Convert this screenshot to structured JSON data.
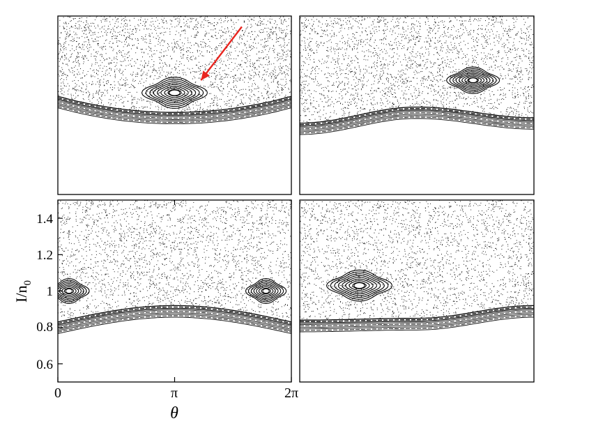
{
  "figure": {
    "marker_color": "#000000",
    "arrow_color": "#e8251f",
    "background": "#ffffff"
  },
  "chart_data": [
    {
      "panel": "top-left",
      "type": "scatter",
      "title": "",
      "xlim": [
        0,
        6.2832
      ],
      "ylim": [
        0.5,
        1.5
      ],
      "features": {
        "island_center": {
          "x": 3.1416,
          "y": 1.07
        },
        "island_size": "large",
        "lower_boundary_shape": "bowl",
        "lower_boundary_y_edges": 1.05,
        "lower_boundary_y_center": 0.96
      },
      "annotations": [
        {
          "type": "arrow",
          "color": "red",
          "from": {
            "x": 4.95,
            "y": 1.44
          },
          "to": {
            "x": 3.85,
            "y": 1.14
          }
        }
      ]
    },
    {
      "panel": "top-right",
      "type": "scatter",
      "title": "",
      "xlim": [
        0,
        6.2832
      ],
      "ylim": [
        0.5,
        1.5
      ],
      "features": {
        "island_center": {
          "x": 4.65,
          "y": 1.14
        },
        "island_size": "medium",
        "lower_boundary_shape": "wave",
        "lower_boundary_y_left": 0.9,
        "lower_boundary_y_mid": 0.99,
        "lower_boundary_y_right": 0.93
      }
    },
    {
      "panel": "bottom-left",
      "type": "scatter",
      "title": "",
      "xlabel": "θ",
      "ylabel": "I/n",
      "ylabel_subscript": "0",
      "xlim": [
        0,
        6.2832
      ],
      "ylim": [
        0.5,
        1.5
      ],
      "x_ticks": [
        {
          "value": 0,
          "label": "0"
        },
        {
          "value": 3.1416,
          "label": "π"
        },
        {
          "value": 6.2832,
          "label": "2π"
        }
      ],
      "y_ticks": [
        {
          "value": 0.6,
          "label": "0.6"
        },
        {
          "value": 0.8,
          "label": "0.8"
        },
        {
          "value": 1.0,
          "label": "1"
        },
        {
          "value": 1.2,
          "label": "1.2"
        },
        {
          "value": 1.4,
          "label": "1.4"
        }
      ],
      "features": {
        "island_centers": [
          {
            "x": 0.3,
            "y": 1.0
          },
          {
            "x": 5.6,
            "y": 1.0
          }
        ],
        "island_size": "split-at-edges",
        "lower_boundary_shape": "arch",
        "lower_boundary_y_edges": 0.83,
        "lower_boundary_y_center": 0.92
      }
    },
    {
      "panel": "bottom-right",
      "type": "scatter",
      "title": "",
      "xlim": [
        0,
        6.2832
      ],
      "ylim": [
        0.5,
        1.5
      ],
      "features": {
        "island_center": {
          "x": 1.6,
          "y": 1.03
        },
        "island_size": "large",
        "lower_boundary_shape": "wave",
        "lower_boundary_y_left": 0.84,
        "lower_boundary_y_mid": 0.85,
        "lower_boundary_y_right": 0.92
      }
    }
  ]
}
